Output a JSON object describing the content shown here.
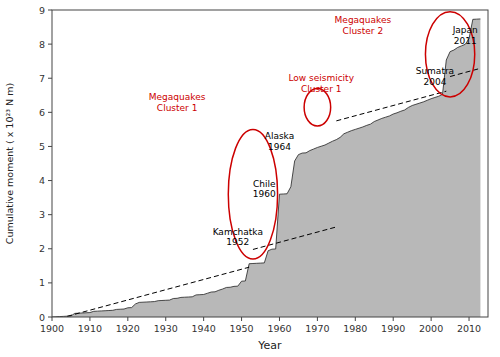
{
  "chart_data": {
    "type": "area",
    "xlabel": "Year",
    "ylabel": "Cumulative moment ( x 10²³ N m)",
    "xlim": [
      1900,
      2015
    ],
    "ylim": [
      0,
      9
    ],
    "xticks": [
      1900,
      1910,
      1920,
      1930,
      1940,
      1950,
      1960,
      1970,
      1980,
      1990,
      2000,
      2010
    ],
    "yticks": [
      0,
      1,
      2,
      3,
      4,
      5,
      6,
      7,
      8,
      9
    ],
    "x": [
      1900,
      1901,
      1902,
      1903,
      1904,
      1905,
      1906,
      1907,
      1908,
      1909,
      1910,
      1911,
      1912,
      1913,
      1914,
      1915,
      1916,
      1917,
      1918,
      1919,
      1920,
      1921,
      1922,
      1923,
      1924,
      1925,
      1926,
      1927,
      1928,
      1929,
      1930,
      1931,
      1932,
      1933,
      1934,
      1935,
      1936,
      1937,
      1938,
      1939,
      1940,
      1941,
      1942,
      1943,
      1944,
      1945,
      1946,
      1947,
      1948,
      1949,
      1950,
      1951,
      1952,
      1953,
      1954,
      1955,
      1956,
      1957,
      1958,
      1959,
      1960,
      1961,
      1962,
      1963,
      1964,
      1965,
      1966,
      1967,
      1968,
      1969,
      1970,
      1971,
      1972,
      1973,
      1974,
      1975,
      1976,
      1977,
      1978,
      1979,
      1980,
      1981,
      1982,
      1983,
      1984,
      1985,
      1986,
      1987,
      1988,
      1989,
      1990,
      1991,
      1992,
      1993,
      1994,
      1995,
      1996,
      1997,
      1998,
      1999,
      2000,
      2001,
      2002,
      2003,
      2004,
      2005,
      2006,
      2007,
      2008,
      2009,
      2010,
      2011,
      2012,
      2013
    ],
    "series": [
      {
        "color": "#b8b8b8",
        "values": [
          0,
          0.006,
          0.012,
          0.018,
          0.024,
          0.03,
          0.106,
          0.112,
          0.118,
          0.124,
          0.13,
          0.166,
          0.172,
          0.178,
          0.184,
          0.19,
          0.196,
          0.222,
          0.228,
          0.234,
          0.27,
          0.276,
          0.382,
          0.428,
          0.434,
          0.44,
          0.446,
          0.452,
          0.478,
          0.484,
          0.49,
          0.496,
          0.542,
          0.548,
          0.574,
          0.58,
          0.586,
          0.592,
          0.648,
          0.654,
          0.66,
          0.696,
          0.732,
          0.738,
          0.784,
          0.82,
          0.866,
          0.872,
          0.898,
          0.904,
          1.05,
          1.056,
          1.562,
          1.568,
          1.574,
          1.58,
          1.586,
          1.942,
          1.988,
          1.994,
          3.6,
          3.606,
          3.612,
          3.818,
          4.574,
          4.76,
          4.806,
          4.812,
          4.878,
          4.924,
          4.97,
          5.006,
          5.042,
          5.098,
          5.154,
          5.2,
          5.266,
          5.372,
          5.418,
          5.464,
          5.5,
          5.536,
          5.572,
          5.618,
          5.654,
          5.73,
          5.776,
          5.822,
          5.858,
          5.894,
          5.95,
          5.986,
          6.032,
          6.068,
          6.144,
          6.2,
          6.236,
          6.272,
          6.308,
          6.354,
          6.4,
          6.436,
          6.472,
          6.528,
          7.534,
          7.78,
          7.826,
          7.902,
          7.948,
          7.994,
          8.16,
          8.726,
          8.732,
          8.738
        ]
      }
    ],
    "dashed_lines": [
      {
        "x": [
          1904,
          1952
        ],
        "y": [
          0.02,
          1.46
        ]
      },
      {
        "x": [
          1953,
          1975
        ],
        "y": [
          1.98,
          2.64
        ]
      },
      {
        "x": [
          1975,
          2004
        ],
        "y": [
          5.75,
          6.62
        ]
      },
      {
        "x": [
          2005,
          2013
        ],
        "y": [
          7.05,
          7.29
        ]
      }
    ],
    "annotations": [
      {
        "text": "Kamchatka\n1952",
        "x": 1949,
        "y": 2.35,
        "color": "#000000"
      },
      {
        "text": "Chile\n1960",
        "x": 1956,
        "y": 3.75,
        "color": "#000000"
      },
      {
        "text": "Alaska\n1964",
        "x": 1960,
        "y": 5.15,
        "color": "#000000"
      },
      {
        "text": "Sumatra\n2004",
        "x": 2001,
        "y": 7.05,
        "color": "#000000"
      },
      {
        "text": "Japan\n2011",
        "x": 2009,
        "y": 8.25,
        "color": "#000000"
      },
      {
        "text": "Megaquakes\nCluster 1",
        "x": 1933,
        "y": 6.3,
        "color": "#cc0000"
      },
      {
        "text": "Megaquakes\nCluster 2",
        "x": 1982,
        "y": 8.55,
        "color": "#cc0000"
      },
      {
        "text": "Low seismicity\nCluster 1",
        "x": 1971,
        "y": 6.85,
        "color": "#cc0000"
      }
    ],
    "ellipses": [
      {
        "cx": 1953,
        "cy": 3.6,
        "width": 13,
        "height": 3.8,
        "color": "#cc0000"
      },
      {
        "cx": 1970,
        "cy": 6.15,
        "width": 7,
        "height": 1.1,
        "color": "#cc0000"
      },
      {
        "cx": 2005,
        "cy": 7.7,
        "width": 13,
        "height": 2.5,
        "color": "#cc0000"
      }
    ]
  }
}
